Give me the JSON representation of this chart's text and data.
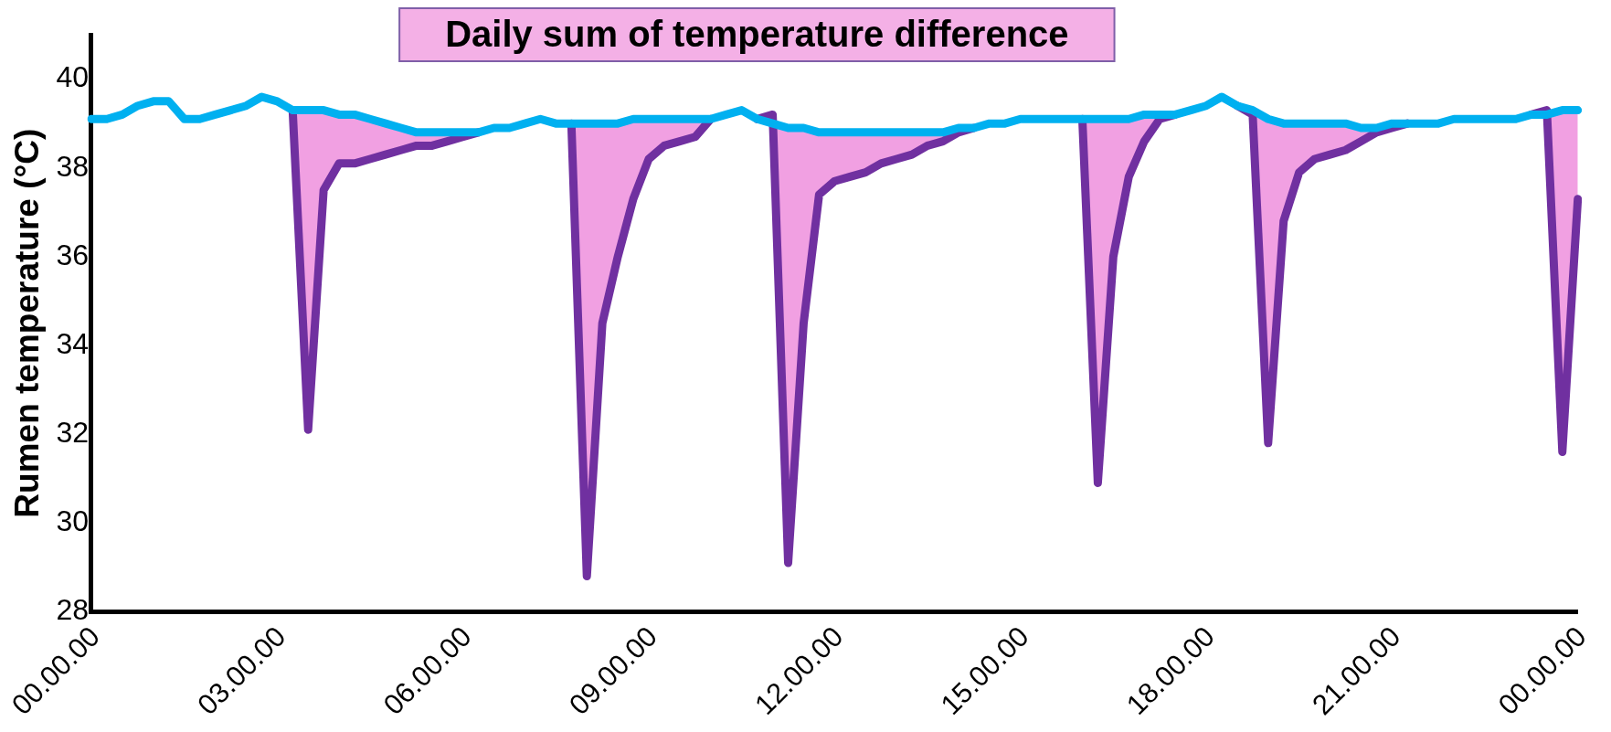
{
  "chart_data": {
    "type": "line",
    "ylabel": "Rumen temperature (°C)",
    "annotations": [
      "Daily sum of temperature difference"
    ],
    "categories": [
      "00.00.00",
      null,
      null,
      null,
      null,
      null,
      null,
      null,
      null,
      null,
      null,
      null,
      "03.00.00",
      null,
      null,
      null,
      null,
      null,
      null,
      null,
      null,
      null,
      null,
      null,
      "06.00.00",
      null,
      null,
      null,
      null,
      null,
      null,
      null,
      null,
      null,
      null,
      null,
      "09.00.00",
      null,
      null,
      null,
      null,
      null,
      null,
      null,
      null,
      null,
      null,
      null,
      "12.00.00",
      null,
      null,
      null,
      null,
      null,
      null,
      null,
      null,
      null,
      null,
      null,
      "15.00.00",
      null,
      null,
      null,
      null,
      null,
      null,
      null,
      null,
      null,
      null,
      null,
      "18.00.00",
      null,
      null,
      null,
      null,
      null,
      null,
      null,
      null,
      null,
      null,
      null,
      "21.00.00",
      null,
      null,
      null,
      null,
      null,
      null,
      null,
      null,
      null,
      null,
      null,
      "00.00.00"
    ],
    "ylim": [
      28,
      41
    ],
    "yticks": [
      28,
      30,
      32,
      34,
      36,
      38,
      40
    ],
    "grid": false,
    "legend": false,
    "marker": "none",
    "line_style": "solid",
    "series": [
      {
        "color": "#7030a0",
        "values": [
          null,
          null,
          null,
          null,
          null,
          null,
          null,
          null,
          null,
          null,
          null,
          null,
          null,
          39.3,
          32.1,
          37.5,
          38.1,
          38.1,
          38.2,
          38.3,
          38.4,
          38.5,
          38.5,
          38.6,
          38.7,
          38.8,
          null,
          null,
          null,
          null,
          null,
          39.0,
          28.8,
          34.5,
          36.0,
          37.3,
          38.2,
          38.5,
          38.6,
          38.7,
          39.1,
          null,
          null,
          39.1,
          39.2,
          29.1,
          34.5,
          37.4,
          37.7,
          37.8,
          37.9,
          38.1,
          38.2,
          38.3,
          38.5,
          38.6,
          38.8,
          38.9,
          null,
          null,
          null,
          null,
          null,
          null,
          39.1,
          30.9,
          36.0,
          37.8,
          38.6,
          39.1,
          39.2,
          null,
          null,
          null,
          39.4,
          39.2,
          31.8,
          36.8,
          37.9,
          38.2,
          38.3,
          38.4,
          38.6,
          38.8,
          38.9,
          39.0,
          null,
          null,
          null,
          null,
          null,
          null,
          null,
          39.2,
          39.3,
          31.6,
          37.3
        ]
      },
      {
        "color": "#00b0f0",
        "values": [
          39.1,
          39.1,
          39.2,
          39.4,
          39.5,
          39.5,
          39.1,
          39.1,
          39.2,
          39.3,
          39.4,
          39.6,
          39.5,
          39.3,
          39.3,
          39.3,
          39.2,
          39.2,
          39.1,
          39.0,
          38.9,
          38.8,
          38.8,
          38.8,
          38.8,
          38.8,
          38.9,
          38.9,
          39.0,
          39.1,
          39.0,
          39.0,
          39.0,
          39.0,
          39.0,
          39.1,
          39.1,
          39.1,
          39.1,
          39.1,
          39.1,
          39.2,
          39.3,
          39.1,
          39.0,
          38.9,
          38.9,
          38.8,
          38.8,
          38.8,
          38.8,
          38.8,
          38.8,
          38.8,
          38.8,
          38.8,
          38.9,
          38.9,
          39.0,
          39.0,
          39.1,
          39.1,
          39.1,
          39.1,
          39.1,
          39.1,
          39.1,
          39.1,
          39.2,
          39.2,
          39.2,
          39.3,
          39.4,
          39.6,
          39.4,
          39.3,
          39.1,
          39.0,
          39.0,
          39.0,
          39.0,
          39.0,
          38.9,
          38.9,
          39.0,
          39.0,
          39.0,
          39.0,
          39.1,
          39.1,
          39.1,
          39.1,
          39.1,
          39.2,
          39.2,
          39.3,
          39.3
        ]
      }
    ]
  }
}
